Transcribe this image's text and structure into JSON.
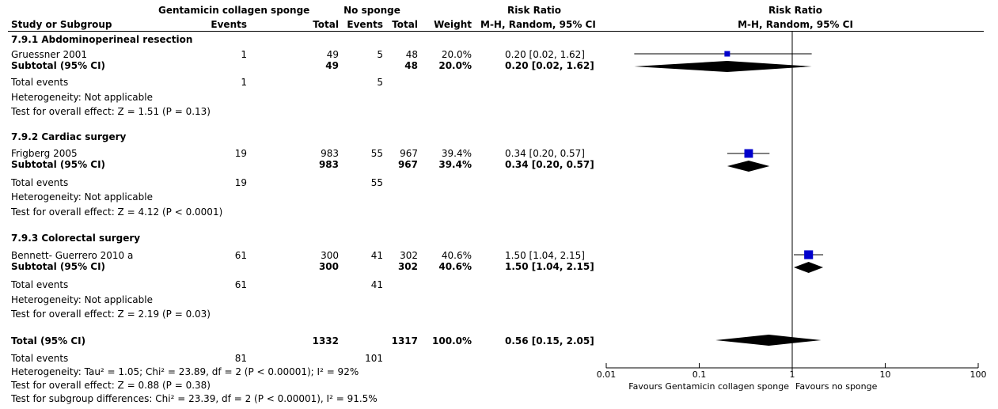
{
  "header": {
    "group1": "Gentamicin collagen sponge",
    "group2": "No sponge",
    "risk_ratio": "Risk Ratio",
    "plot_title": "Risk Ratio",
    "study": "Study or Subgroup",
    "events": "Events",
    "total": "Total",
    "weight": "Weight",
    "method": "M-H, Random, 95% CI",
    "plot_method": "M-H, Random, 95% CI"
  },
  "groups": [
    {
      "title": "7.9.1 Abdominoperineal resection",
      "study": {
        "name": "Gruessner 2001",
        "e1": "1",
        "t1": "49",
        "e2": "5",
        "t2": "48",
        "weight": "20.0%",
        "ci": "0.20 [0.02, 1.62]"
      },
      "subtotal": {
        "label": "Subtotal (95% CI)",
        "t1": "49",
        "t2": "48",
        "weight": "20.0%",
        "ci": "0.20 [0.02, 1.62]"
      },
      "total_events": {
        "label": "Total events",
        "e1": "1",
        "e2": "5"
      },
      "heterogeneity": "Heterogeneity: Not applicable",
      "overall": "Test for overall effect: Z = 1.51 (P = 0.13)"
    },
    {
      "title": "7.9.2 Cardiac surgery",
      "study": {
        "name": "Frigberg 2005",
        "e1": "19",
        "t1": "983",
        "e2": "55",
        "t2": "967",
        "weight": "39.4%",
        "ci": "0.34 [0.20, 0.57]"
      },
      "subtotal": {
        "label": "Subtotal (95% CI)",
        "t1": "983",
        "t2": "967",
        "weight": "39.4%",
        "ci": "0.34 [0.20, 0.57]"
      },
      "total_events": {
        "label": "Total events",
        "e1": "19",
        "e2": "55"
      },
      "heterogeneity": "Heterogeneity: Not applicable",
      "overall": "Test for overall effect: Z = 4.12 (P < 0.0001)"
    },
    {
      "title": "7.9.3 Colorectal surgery",
      "study": {
        "name": "Bennett- Guerrero 2010 a",
        "e1": "61",
        "t1": "300",
        "e2": "41",
        "t2": "302",
        "weight": "40.6%",
        "ci": "1.50 [1.04, 2.15]"
      },
      "subtotal": {
        "label": "Subtotal (95% CI)",
        "t1": "300",
        "t2": "302",
        "weight": "40.6%",
        "ci": "1.50 [1.04, 2.15]"
      },
      "total_events": {
        "label": "Total events",
        "e1": "61",
        "e2": "41"
      },
      "heterogeneity": "Heterogeneity: Not applicable",
      "overall": "Test for overall effect: Z = 2.19 (P = 0.03)"
    }
  ],
  "total": {
    "label": "Total (95% CI)",
    "t1": "1332",
    "t2": "1317",
    "weight": "100.0%",
    "ci": "0.56 [0.15, 2.05]",
    "events_label": "Total events",
    "e1": "81",
    "e2": "101",
    "heterogeneity": "Heterogeneity: Tau² = 1.05; Chi² = 23.89, df = 2 (P < 0.00001); I² = 92%",
    "overall": "Test for overall effect: Z = 0.88 (P = 0.38)",
    "subgroup": "Test for subgroup differences: Chi² = 23.39, df = 2 (P < 0.00001), I² = 91.5%"
  },
  "chart_data": {
    "type": "forest",
    "scale": "log",
    "xlim": [
      0.01,
      100
    ],
    "ticks": [
      0.01,
      0.1,
      1,
      10,
      100
    ],
    "tick_labels": [
      "0.01",
      "0.1",
      "1",
      "10",
      "100"
    ],
    "reference_line": 1,
    "favours_left": "Favours Gentamicin collagen sponge",
    "favours_right": "Favours no sponge",
    "marker_color": "#0000cc",
    "studies": [
      {
        "name": "Gruessner 2001",
        "rr": 0.2,
        "lo": 0.02,
        "hi": 1.62,
        "weight": 20.0
      },
      {
        "name": "Frigberg 2005",
        "rr": 0.34,
        "lo": 0.2,
        "hi": 0.57,
        "weight": 39.4
      },
      {
        "name": "Bennett- Guerrero 2010 a",
        "rr": 1.5,
        "lo": 1.04,
        "hi": 2.15,
        "weight": 40.6
      }
    ],
    "diamonds": [
      {
        "name": "Subtotal 7.9.1",
        "rr": 0.2,
        "lo": 0.02,
        "hi": 1.62
      },
      {
        "name": "Subtotal 7.9.2",
        "rr": 0.34,
        "lo": 0.2,
        "hi": 0.57
      },
      {
        "name": "Subtotal 7.9.3",
        "rr": 1.5,
        "lo": 1.04,
        "hi": 2.15
      },
      {
        "name": "Total",
        "rr": 0.56,
        "lo": 0.15,
        "hi": 2.05
      }
    ]
  }
}
